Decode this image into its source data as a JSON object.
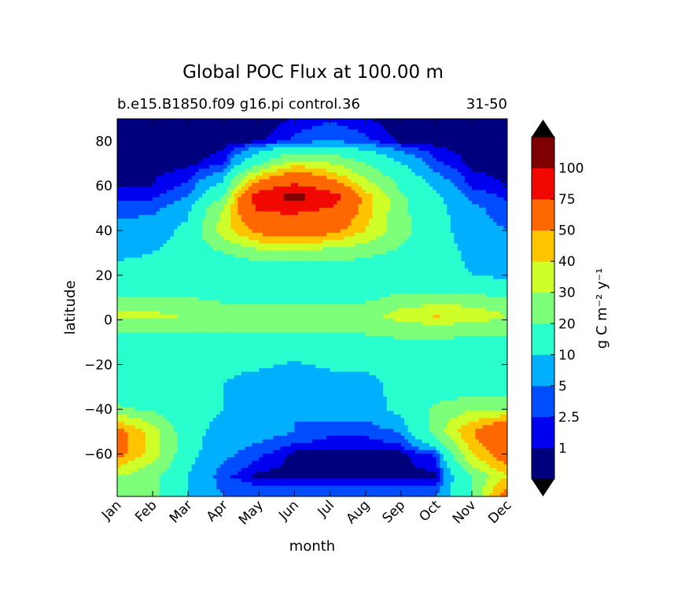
{
  "chart_data": {
    "type": "heatmap",
    "title": "Global POC Flux at 100.00 m",
    "subtitle_left": "b.e15.B1850.f09 g16.pi control.36",
    "subtitle_right": "31-50",
    "xlabel": "month",
    "ylabel": "latitude",
    "x_categories": [
      "Jan",
      "Feb",
      "Mar",
      "Apr",
      "May",
      "Jun",
      "Jul",
      "Aug",
      "Sep",
      "Oct",
      "Nov",
      "Dec"
    ],
    "y_ticks": [
      80,
      60,
      40,
      20,
      0,
      -20,
      -40,
      -60
    ],
    "ylim": [
      -79,
      90
    ],
    "colorbar": {
      "label": "g C m⁻² y⁻¹",
      "tick_labels": [
        "1",
        "2.5",
        "5",
        "10",
        "20",
        "30",
        "40",
        "50",
        "75",
        "100"
      ],
      "extend": "both",
      "colors": [
        "#00007f",
        "#0000f1",
        "#004cff",
        "#00b0ff",
        "#29ffce",
        "#7dff7a",
        "#ceff29",
        "#ffc400",
        "#ff6800",
        "#f10800",
        "#7f0000"
      ]
    },
    "levels": [
      0,
      1,
      2.5,
      5,
      10,
      20,
      30,
      40,
      50,
      75,
      100
    ],
    "approximate_field": [
      {
        "lat": -79,
        "values": [
          25,
          22,
          10,
          5,
          5,
          5,
          5,
          5,
          5,
          5,
          20,
          60
        ]
      },
      {
        "lat": -70,
        "values": [
          30,
          22,
          10,
          3,
          0.5,
          0.5,
          0.5,
          0.5,
          0.5,
          0.5,
          20,
          40
        ]
      },
      {
        "lat": -60,
        "values": [
          55,
          35,
          12,
          6,
          3,
          0.5,
          0.5,
          0.5,
          0.5,
          3,
          40,
          60
        ]
      },
      {
        "lat": -50,
        "values": [
          55,
          35,
          12,
          8,
          7,
          5,
          3,
          3,
          5,
          25,
          50,
          70
        ]
      },
      {
        "lat": -40,
        "values": [
          22,
          18,
          12,
          10,
          7,
          5,
          7,
          7,
          12,
          22,
          28,
          28
        ]
      },
      {
        "lat": -30,
        "values": [
          12,
          12,
          12,
          10,
          7,
          6,
          7,
          8,
          12,
          14,
          14,
          12
        ]
      },
      {
        "lat": -20,
        "values": [
          11,
          11,
          11,
          11,
          11,
          9,
          11,
          11,
          11,
          12,
          12,
          12
        ]
      },
      {
        "lat": -10,
        "values": [
          16,
          16,
          16,
          16,
          16,
          16,
          16,
          16,
          18,
          18,
          16,
          16
        ]
      },
      {
        "lat": -2,
        "values": [
          25,
          25,
          25,
          25,
          25,
          25,
          25,
          25,
          28,
          30,
          28,
          25
        ]
      },
      {
        "lat": 2,
        "values": [
          32,
          32,
          30,
          25,
          25,
          25,
          25,
          25,
          35,
          42,
          38,
          30
        ]
      },
      {
        "lat": 10,
        "values": [
          20,
          20,
          20,
          18,
          18,
          18,
          18,
          18,
          22,
          22,
          22,
          20
        ]
      },
      {
        "lat": 20,
        "values": [
          12,
          12,
          12,
          12,
          12,
          14,
          14,
          14,
          13,
          13,
          10,
          8
        ]
      },
      {
        "lat": 30,
        "values": [
          9,
          10,
          12,
          20,
          25,
          25,
          24,
          22,
          18,
          14,
          8,
          6
        ]
      },
      {
        "lat": 40,
        "values": [
          6,
          7,
          12,
          35,
          55,
          60,
          55,
          40,
          24,
          12,
          7,
          5
        ]
      },
      {
        "lat": 50,
        "values": [
          4,
          4,
          8,
          30,
          80,
          80,
          75,
          45,
          22,
          12,
          6,
          3
        ]
      },
      {
        "lat": 55,
        "values": [
          2,
          2,
          5,
          20,
          90,
          110,
          90,
          45,
          22,
          11,
          4,
          2
        ]
      },
      {
        "lat": 60,
        "values": [
          1,
          1,
          3,
          12,
          60,
          80,
          60,
          35,
          18,
          8,
          2,
          1
        ]
      },
      {
        "lat": 70,
        "values": [
          0.5,
          0.5,
          0.5,
          2,
          18,
          35,
          30,
          20,
          10,
          3,
          0.5,
          0.3
        ]
      },
      {
        "lat": 80,
        "values": [
          0.2,
          0.2,
          0.2,
          0.3,
          0.5,
          3,
          5,
          3,
          0.5,
          0.3,
          0.2,
          0.2
        ]
      },
      {
        "lat": 90,
        "values": [
          0.1,
          0.1,
          0.1,
          0.1,
          0.1,
          1,
          2,
          1,
          0.1,
          0.1,
          0.1,
          0.1
        ]
      }
    ]
  }
}
